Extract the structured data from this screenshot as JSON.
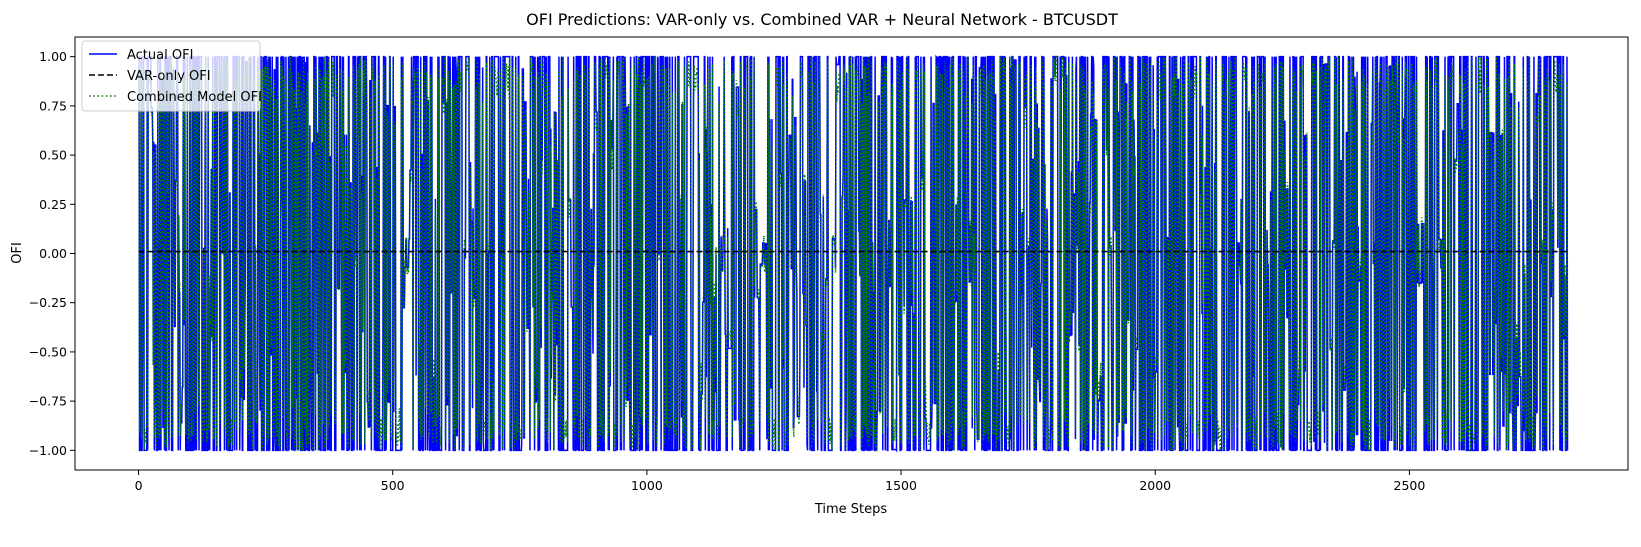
{
  "chart_data": {
    "type": "line",
    "title": "OFI Predictions: VAR-only vs. Combined VAR + Neural Network - BTCUSDT",
    "xlabel": "Time Steps",
    "ylabel": "OFI",
    "xlim": [
      -125,
      2930
    ],
    "ylim": [
      -1.1,
      1.1
    ],
    "x_ticks": [
      0,
      500,
      1000,
      1500,
      2000,
      2500
    ],
    "y_ticks": [
      -1.0,
      -0.75,
      -0.5,
      -0.25,
      0.0,
      0.25,
      0.5,
      0.75,
      1.0
    ],
    "y_tick_labels": [
      "−1.00",
      "−0.75",
      "−0.50",
      "−0.25",
      "0.00",
      "0.25",
      "0.50",
      "0.75",
      "1.00"
    ],
    "n_points": 2812,
    "grid": false,
    "legend_position": "upper left",
    "series": [
      {
        "name": "Actual OFI",
        "color": "#0000ff",
        "style": "solid",
        "description": "high-frequency oscillation between -1 and 1"
      },
      {
        "name": "VAR-only OFI",
        "color": "#000000",
        "style": "dashed",
        "constant_value": 0.01
      },
      {
        "name": "Combined Model OFI",
        "color": "#008000",
        "style": "dotted",
        "description": "tracks Actual OFI between -1 and 1"
      }
    ]
  }
}
